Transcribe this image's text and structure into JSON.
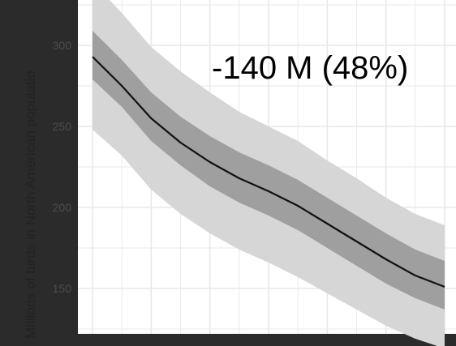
{
  "chart_data": {
    "type": "line",
    "title": "",
    "xlabel": "",
    "ylabel": "Millions of birds in North American populatio",
    "annotation": "-140 M (48%)",
    "ylim": [
      122,
      328
    ],
    "y_ticks": [
      150,
      200,
      250,
      300
    ],
    "x_index_range": [
      0,
      12
    ],
    "grid": true,
    "series": [
      {
        "x": [
          0,
          1,
          2,
          3,
          4,
          5,
          6,
          7,
          8,
          9,
          10,
          11,
          12
        ],
        "values": [
          293,
          275,
          255,
          240,
          228,
          218,
          210,
          201,
          190,
          179,
          168,
          158,
          151
        ],
        "inner_band_upper": [
          309,
          291,
          271,
          256,
          244,
          234,
          226,
          217,
          206,
          195,
          184,
          174,
          167
        ],
        "inner_band_lower": [
          279,
          262,
          241,
          226,
          213,
          203,
          195,
          186,
          175,
          164,
          153,
          144,
          137
        ],
        "outer_band_upper": [
          339,
          320,
          299,
          284,
          271,
          259,
          250,
          241,
          229,
          218,
          206,
          196,
          189
        ],
        "outer_band_lower": [
          248,
          232,
          211,
          196,
          184,
          174,
          166,
          157,
          147,
          137,
          127,
          119,
          113
        ]
      }
    ]
  },
  "colors": {
    "frame": "#2b2b2b",
    "panel": "#ffffff",
    "grid": "#e9e9e9",
    "outer_band": "#d6d6d6",
    "inner_band": "#9f9f9f",
    "line": "#111111",
    "tick_label": "#4d4d4d",
    "axis_label": "#222222",
    "annotation": "#000000"
  }
}
